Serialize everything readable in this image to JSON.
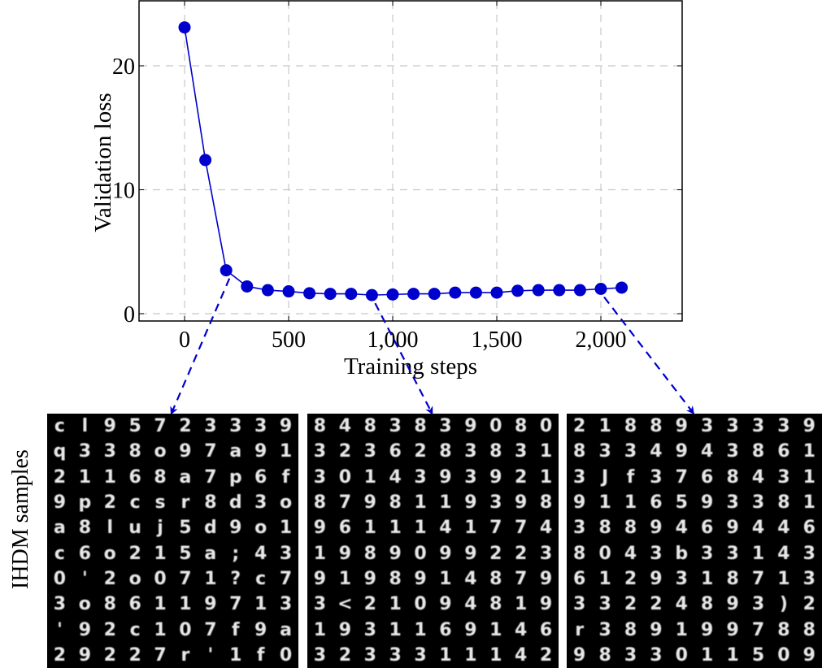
{
  "chart_data": {
    "type": "line",
    "title": "",
    "xlabel": "Training steps",
    "ylabel": "Validation loss",
    "x": [
      0,
      100,
      200,
      300,
      400,
      500,
      600,
      700,
      800,
      900,
      1000,
      1100,
      1200,
      1300,
      1400,
      1500,
      1600,
      1700,
      1800,
      1900,
      2000,
      2100
    ],
    "series": [
      {
        "name": "Validation loss",
        "color": "#0000cc",
        "marker": "circle",
        "values": [
          23.1,
          12.4,
          3.5,
          2.2,
          1.9,
          1.8,
          1.65,
          1.6,
          1.6,
          1.5,
          1.55,
          1.6,
          1.6,
          1.7,
          1.7,
          1.7,
          1.85,
          1.9,
          1.9,
          1.9,
          2.0,
          2.1
        ]
      }
    ],
    "xticks": [
      0,
      500,
      1000,
      1500,
      2000
    ],
    "xtick_labels": [
      "0",
      "500",
      "1,000",
      "1,500",
      "2,000"
    ],
    "yticks": [
      0,
      10,
      20
    ],
    "ytick_labels": [
      "0",
      "10",
      "20"
    ],
    "xlim": [
      -270,
      2250
    ],
    "ylim": [
      -0.7,
      25.3
    ],
    "grid": true,
    "grid_style": "dashed",
    "legend": null,
    "annotations": [
      {
        "type": "dashed-arrow",
        "from_x": 200,
        "to_panel": 0
      },
      {
        "type": "dashed-arrow",
        "from_x": 900,
        "to_panel": 1
      },
      {
        "type": "dashed-arrow",
        "from_x": 2000,
        "to_panel": 2
      }
    ]
  },
  "samples": {
    "label": "IHDM samples",
    "panels": [
      {
        "step": 200,
        "rows": [
          "c l 9 5 7 2 3 3 3 9",
          "q 3 3 8 o 9 7 a 9 1",
          "2 1 1 6 8 a 7 p 6 f",
          "9 p 2 c s r 8 d 3 o",
          "a 8 l u j 5 d 9 o 1",
          "c 6 o 2 1 5 a ; 4 3",
          "0 ' 2 o 0 7 1 ? c 7",
          "3 o 8 6 1 1 9 7 1 3",
          "' 9 2 c 1 0 7 f 9 a",
          "2 9 2 2 7 r ' 1 f 0"
        ]
      },
      {
        "step": 900,
        "rows": [
          "8 4 8 3 8 3 9 0 8 0",
          "3 2 3 6 2 8 3 8 3 1",
          "3 0 1 4 3 9 3 9 2 1",
          "8 7 9 8 1 1 9 3 9 8",
          "9 6 1 1 1 4 1 7 7 4",
          "1 9 8 9 0 9 9 2 2 3",
          "9 1 9 8 9 1 4 8 7 9",
          "3 < 2 1 0 9 4 8 1 9",
          "1 9 3 1 1 6 9 1 4 6",
          "3 2 3 3 3 1 1 1 4 2"
        ]
      },
      {
        "step": 2000,
        "rows": [
          "2 1 8 8 9 3 3 3 3 9",
          "8 3 3 4 9 4 3 8 6 1",
          "3 J f 3 7 6 8 4 3 1",
          "9 1 1 6 5 9 3 3 8 1",
          "3 8 8 9 4 6 9 4 4 6",
          "8 0 4 3 b 3 3 1 4 3",
          "6 1 2 9 3 1 8 7 1 3",
          "3 3 2 2 4 8 9 3 ) 2",
          "r 3 8 9 1 9 9 7 8 8",
          "9 8 3 3 0 1 1 5 0 9"
        ]
      }
    ]
  }
}
